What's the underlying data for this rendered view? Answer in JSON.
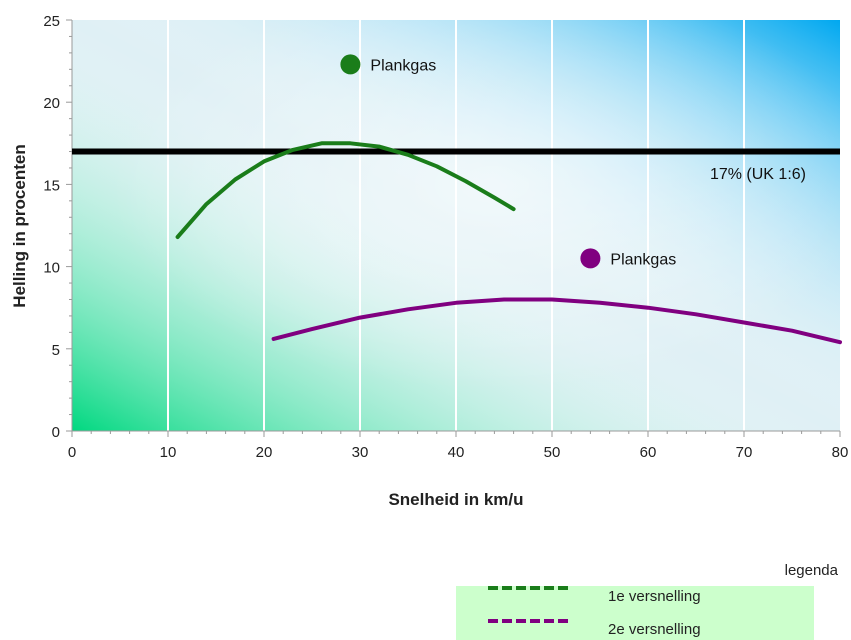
{
  "chart_data": {
    "type": "line",
    "xlabel": "Snelheid in km/u",
    "ylabel": "Helling in procenten",
    "xlim": [
      0,
      80
    ],
    "ylim": [
      0,
      25
    ],
    "xticks": [
      0,
      10,
      20,
      30,
      40,
      50,
      60,
      70,
      80
    ],
    "yticks": [
      0,
      5,
      10,
      15,
      20,
      25
    ],
    "grid": "vertical",
    "series": [
      {
        "name": "1e versnelling",
        "color": "#1a7d1a",
        "x": [
          11,
          14,
          17,
          20,
          23,
          26,
          29,
          32,
          35,
          38,
          41,
          44,
          46
        ],
        "y": [
          11.8,
          13.8,
          15.3,
          16.4,
          17.1,
          17.5,
          17.5,
          17.3,
          16.8,
          16.1,
          15.2,
          14.2,
          13.5
        ]
      },
      {
        "name": "2e versnelling",
        "color": "#800080",
        "x": [
          21,
          25,
          30,
          35,
          40,
          45,
          50,
          55,
          60,
          65,
          70,
          75,
          80
        ],
        "y": [
          5.6,
          6.2,
          6.9,
          7.4,
          7.8,
          8.0,
          8.0,
          7.8,
          7.5,
          7.1,
          6.6,
          6.1,
          5.4
        ]
      }
    ],
    "reference_line": {
      "y": 17,
      "color": "#000000",
      "label": "17% (UK 1:6)"
    },
    "markers": [
      {
        "x": 29,
        "y": 22.3,
        "color": "#1a7d1a",
        "label": "Plankgas"
      },
      {
        "x": 54,
        "y": 10.5,
        "color": "#800080",
        "label": "Plankgas"
      }
    ],
    "legend": {
      "title": "legenda",
      "placement": "bottom-right",
      "background": "#ccffcc",
      "entries": [
        "1e versnelling",
        "2e versnelling"
      ]
    }
  }
}
